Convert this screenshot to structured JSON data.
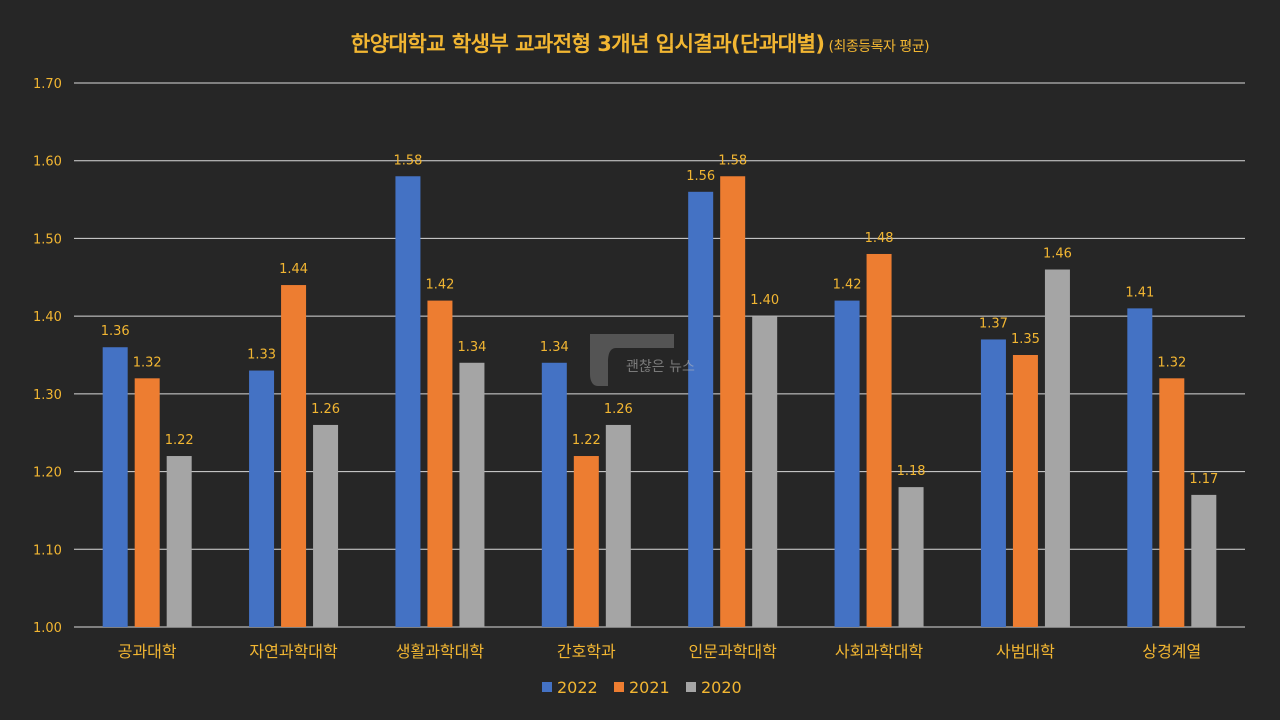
{
  "title": "한양대학교 학생부 교과전형 3개년 입시결과(단과대별)",
  "subtitle": "(최종등록자 평균)",
  "watermark": "괜찮은 뉴스",
  "chart_data": {
    "type": "bar",
    "title": "한양대학교 학생부 교과전형 3개년 입시결과(단과대별)",
    "subtitle": "(최종등록자 평균)",
    "xlabel": "",
    "ylabel": "",
    "ylim": [
      1.0,
      1.7
    ],
    "yticks": [
      "1.00",
      "1.10",
      "1.20",
      "1.30",
      "1.40",
      "1.50",
      "1.60",
      "1.70"
    ],
    "grid": true,
    "legend_position": "bottom",
    "categories": [
      "공과대학",
      "자연과학대학",
      "생활과학대학",
      "간호학과",
      "인문과학대학",
      "사회과학대학",
      "사범대학",
      "상경계열"
    ],
    "series": [
      {
        "name": "2022",
        "color": "#4472c4",
        "values": [
          1.36,
          1.33,
          1.58,
          1.34,
          1.56,
          1.42,
          1.37,
          1.41
        ]
      },
      {
        "name": "2021",
        "color": "#ed7d31",
        "values": [
          1.32,
          1.44,
          1.42,
          1.22,
          1.58,
          1.48,
          1.35,
          1.32
        ]
      },
      {
        "name": "2020",
        "color": "#a5a5a5",
        "values": [
          1.22,
          1.26,
          1.34,
          1.26,
          1.4,
          1.18,
          1.46,
          1.17
        ]
      }
    ],
    "colors": {
      "background": "#262626",
      "text": "#f2b632",
      "grid": "#d9d9d9"
    }
  }
}
